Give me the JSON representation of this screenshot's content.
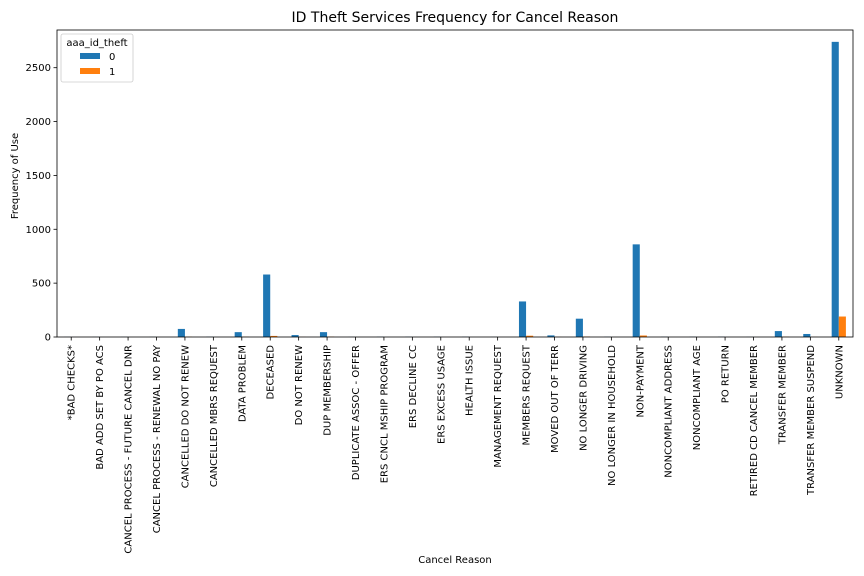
{
  "chart_data": {
    "type": "bar",
    "title": "ID Theft Services Frequency for Cancel Reason",
    "xlabel": "Cancel Reason",
    "ylabel": "Frequency of Use",
    "ylim": [
      0,
      2850
    ],
    "yticks": [
      0,
      500,
      1000,
      1500,
      2000,
      2500
    ],
    "grid": false,
    "legend": {
      "title": "aaa_id_theft",
      "placement": "top-left"
    },
    "categories": [
      "*BAD CHECKS*",
      "BAD ADD SET BY PO ACS",
      "CANCEL PROCESS - FUTURE CANCEL DNR",
      "CANCEL PROCESS - RENEWAL NO PAY",
      "CANCELLED DO NOT RENEW",
      "CANCELLED MBRS REQUEST",
      "DATA PROBLEM",
      "DECEASED",
      "DO NOT RENEW",
      "DUP MEMBERSHIP",
      "DUPLICATE ASSOC - OFFER",
      "ERS CNCL MSHIP PROGRAM",
      "ERS DECLINE CC",
      "ERS EXCESS USAGE",
      "HEALTH ISSUE",
      "MANAGEMENT REQUEST",
      "MEMBERS REQUEST",
      "MOVED OUT OF TERR",
      "NO LONGER DRIVING",
      "NO LONGER IN HOUSEHOLD",
      "NON-PAYMENT",
      "NONCOMPLIANT ADDRESS",
      "NONCOMPLIANT AGE",
      "PO RETURN",
      "RETIRED CD CANCEL MEMBER",
      "TRANSFER MEMBER",
      "TRANSFER MEMBER SUSPEND",
      "UNKNOWN"
    ],
    "series": [
      {
        "name": "0",
        "color": "#1f77b4",
        "values": [
          1,
          1,
          1,
          1,
          75,
          2,
          45,
          580,
          18,
          45,
          1,
          2,
          2,
          2,
          2,
          1,
          330,
          15,
          170,
          2,
          860,
          2,
          2,
          2,
          1,
          55,
          28,
          2740
        ]
      },
      {
        "name": "1",
        "color": "#ff7f0e",
        "values": [
          0,
          0,
          0,
          0,
          2,
          0,
          2,
          10,
          1,
          3,
          0,
          0,
          0,
          0,
          0,
          0,
          12,
          1,
          4,
          0,
          14,
          0,
          0,
          0,
          0,
          2,
          1,
          190
        ]
      }
    ]
  }
}
